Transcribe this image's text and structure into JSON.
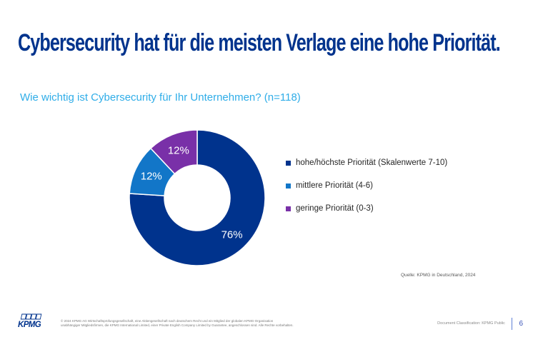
{
  "slide": {
    "title": "Cybersecurity hat für die meisten Verlage eine hohe Priorität.",
    "subtitle": "Wie wichtig ist Cybersecurity für Ihr Unternehmen? (n=118)",
    "source": "Quelle: KPMG in Deutschland, 2024",
    "page_number": "6"
  },
  "chart_data": {
    "type": "pie",
    "donut": true,
    "title": "Wie wichtig ist Cybersecurity für Ihr Unternehmen? (n=118)",
    "labels": [
      "hohe/höchste Priorität (Skalenwerte 7-10)",
      "mittlere Priorität (4-6)",
      "geringe Priorität (0-3)"
    ],
    "values": [
      76,
      12,
      12
    ],
    "unit": "%",
    "data_labels": [
      "76%",
      "12%",
      "12%"
    ],
    "colors": [
      "#00338D",
      "#1276C8",
      "#7930A8"
    ],
    "start_angle_deg": 0,
    "direction": "clockwise",
    "legend_position": "right"
  },
  "footer": {
    "logo_text": "KPMG",
    "copyright_line1": "© 2024 KPMG AG Wirtschaftsprüfungsgesellschaft, eine Aktiengesellschaft nach deutschem Recht und ein Mitglied der globalen KPMG-Organisation",
    "copyright_line2": "unabhängiger Mitgliedsfirmen, die KPMG International Limited, einer Private English Company Limited by Guarantee, angeschlossen sind. Alle Rechte vorbehalten.",
    "classification": "Document Classification: KPMG Public"
  },
  "palette": {
    "navy": "#00338D",
    "cyan": "#2FADE8",
    "segment_blue": "#1276C8",
    "segment_purple": "#7930A8",
    "text_dark": "#262626",
    "text_gray": "#6E6E6E",
    "page_blue": "#3B55B8",
    "separator_blue": "#5E7FD6"
  }
}
